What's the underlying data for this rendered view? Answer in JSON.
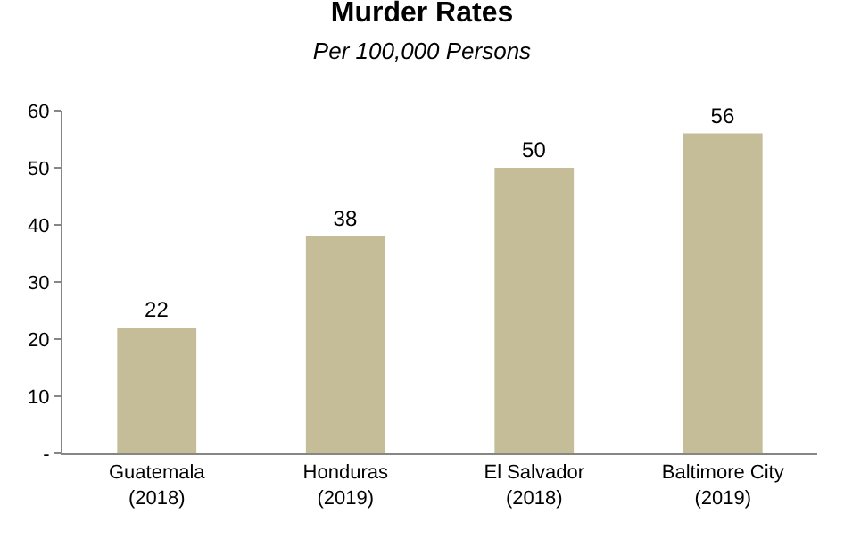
{
  "chart_data": {
    "type": "bar",
    "title": "Murder Rates",
    "subtitle": "Per 100,000 Persons",
    "categories": [
      "Guatemala\n(2018)",
      "Honduras\n(2019)",
      "El Salvador\n(2018)",
      "Baltimore City\n(2019)"
    ],
    "values": [
      22,
      38,
      50,
      56
    ],
    "color": "#c4bd97",
    "data_labels": true,
    "ylim": [
      0,
      60
    ],
    "yticks": [
      {
        "value": 0,
        "label": "-"
      },
      10,
      20,
      30,
      40,
      50,
      60
    ],
    "grid": false,
    "legend": false
  }
}
